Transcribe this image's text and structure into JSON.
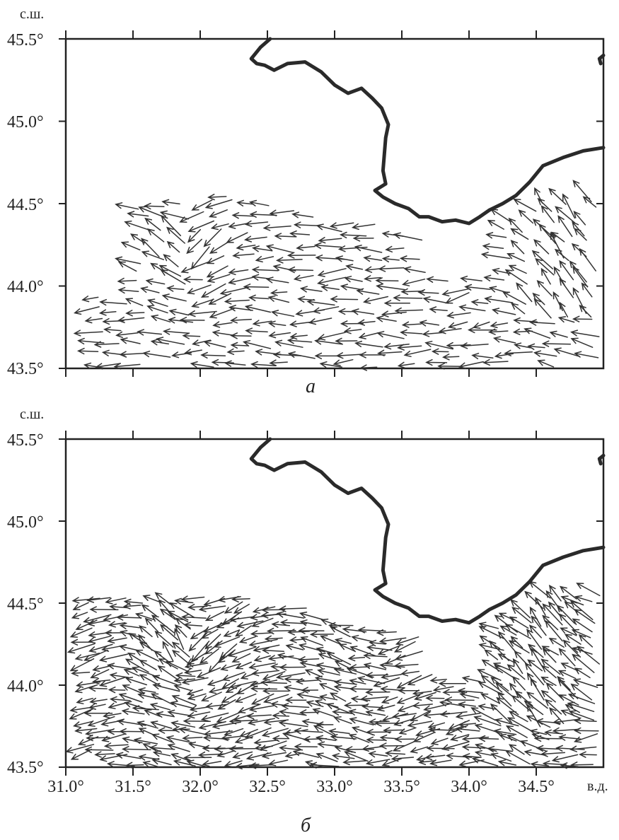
{
  "figure": {
    "lat_unit": "с.ш.",
    "lon_unit": "в.д.",
    "lon_ticks": [
      "31.0°",
      "31.5°",
      "32.0°",
      "32.5°",
      "33.0°",
      "33.5°",
      "34.0°",
      "34.5°"
    ],
    "lat_ticks": [
      "45.5°",
      "45.0°",
      "44.5°",
      "44.0°",
      "43.5°"
    ],
    "lon_range": [
      31.0,
      35.0
    ],
    "lat_range": [
      43.5,
      45.5
    ]
  },
  "panels": [
    {
      "label": "а"
    },
    {
      "label": "б"
    }
  ],
  "colors": {
    "ink": "#222222",
    "coast": "#2a2a2a",
    "vectors": "#333333"
  },
  "coastline": {
    "crimea_west": [
      [
        32.52,
        45.5
      ],
      [
        32.45,
        45.45
      ],
      [
        32.4,
        45.4
      ],
      [
        32.38,
        45.38
      ],
      [
        32.42,
        45.35
      ],
      [
        32.48,
        45.34
      ],
      [
        32.55,
        45.31
      ],
      [
        32.65,
        45.35
      ],
      [
        32.78,
        45.36
      ],
      [
        32.9,
        45.3
      ],
      [
        33.0,
        45.22
      ],
      [
        33.1,
        45.17
      ],
      [
        33.2,
        45.2
      ],
      [
        33.28,
        45.14
      ],
      [
        33.35,
        45.08
      ],
      [
        33.4,
        44.98
      ],
      [
        33.38,
        44.9
      ],
      [
        33.37,
        44.8
      ],
      [
        33.36,
        44.7
      ],
      [
        33.38,
        44.62
      ],
      [
        33.3,
        44.58
      ],
      [
        33.36,
        44.54
      ],
      [
        33.45,
        44.5
      ],
      [
        33.55,
        44.47
      ],
      [
        33.63,
        44.42
      ],
      [
        33.7,
        44.42
      ],
      [
        33.8,
        44.39
      ],
      [
        33.9,
        44.4
      ],
      [
        34.0,
        44.38
      ],
      [
        34.08,
        44.42
      ],
      [
        34.15,
        44.46
      ],
      [
        34.25,
        44.5
      ],
      [
        34.35,
        44.55
      ],
      [
        34.45,
        44.63
      ],
      [
        34.55,
        44.73
      ],
      [
        34.7,
        44.78
      ],
      [
        34.85,
        44.82
      ],
      [
        35.0,
        44.84
      ]
    ],
    "islet": [
      [
        34.98,
        45.35
      ],
      [
        34.97,
        45.38
      ],
      [
        35.0,
        45.4
      ]
    ]
  }
}
